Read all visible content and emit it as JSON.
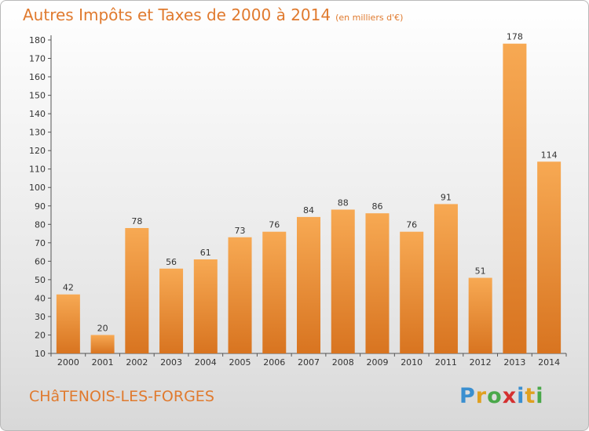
{
  "title": "Autres Impôts et Taxes de 2000 à 2014",
  "subtitle": "(en milliers d'€)",
  "commune": "CHâTENOIS-LES-FORGES",
  "logo": {
    "letters": [
      "P",
      "r",
      "o",
      "x",
      "i",
      "t",
      "i"
    ],
    "colors": [
      "#3a8fd0",
      "#e0a020",
      "#4aa84a",
      "#d43030",
      "#3a8fd0",
      "#e0a020",
      "#4aa84a"
    ]
  },
  "colors": {
    "bar_light": "#f7a953",
    "bar_dark": "#d87420",
    "title": "#e07a2e"
  },
  "chart_data": {
    "type": "bar",
    "title": "Autres Impôts et Taxes de 2000 à 2014",
    "subtitle": "(en milliers d'€)",
    "categories": [
      "2000",
      "2001",
      "2002",
      "2003",
      "2004",
      "2005",
      "2006",
      "2007",
      "2008",
      "2009",
      "2010",
      "2011",
      "2012",
      "2013",
      "2014"
    ],
    "values": [
      42,
      20,
      78,
      56,
      61,
      73,
      76,
      84,
      88,
      86,
      76,
      91,
      51,
      178,
      114
    ],
    "ylim": [
      10,
      180
    ],
    "yticks": [
      10,
      20,
      30,
      40,
      50,
      60,
      70,
      80,
      90,
      100,
      110,
      120,
      130,
      140,
      150,
      160,
      170,
      180
    ],
    "xlabel": "",
    "ylabel": "",
    "grid": false
  }
}
